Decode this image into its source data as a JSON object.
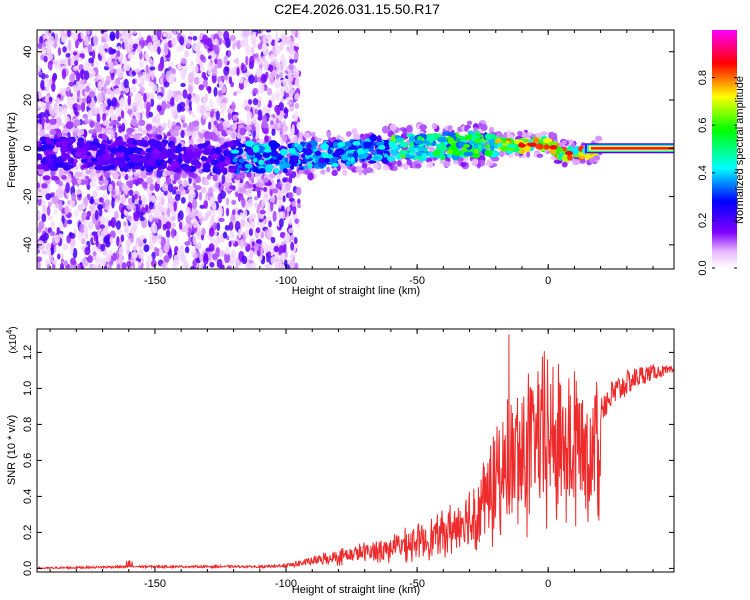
{
  "title": "C2E4.2026.031.15.50.R17",
  "colors": {
    "snr_line": "#ee2a2a",
    "background": "#ffffff",
    "axes": "#000000"
  },
  "chart_data": [
    {
      "type": "heatmap",
      "name": "spectrogram",
      "title": "C2E4.2026.031.15.50.R17",
      "xlabel": "Height of straight line (km)",
      "ylabel": "Frequency (Hz)",
      "xlim": [
        -195,
        48
      ],
      "ylim": [
        -50,
        49
      ],
      "xticks": [
        -150,
        -100,
        -50,
        0
      ],
      "yticks": [
        -40,
        -20,
        0,
        20,
        40
      ],
      "x_tick_labels": [
        "-150",
        "-100",
        "-50",
        "0"
      ],
      "y_tick_labels": [
        "-40",
        "-20",
        "0",
        "20",
        "40"
      ],
      "colorbar": {
        "label": "Normalized spectral amplitude",
        "range": [
          0,
          1
        ],
        "ticks": [
          0.0,
          0.2,
          0.4,
          0.6,
          0.8
        ],
        "tick_labels": [
          "0.0",
          "0.2",
          "0.4",
          "0.6",
          "0.8"
        ],
        "colormap": [
          "#ffffff",
          "#8000ff",
          "#0000ff",
          "#00ffff",
          "#00ff00",
          "#ffff00",
          "#ff0000",
          "#ff00ff"
        ]
      },
      "features": {
        "noise_region_x": [
          -195,
          -100
        ],
        "tone_center_hz": [
          [
            -195,
            -2
          ],
          [
            -100,
            -4
          ],
          [
            -60,
            0
          ],
          [
            -25,
            2
          ],
          [
            -12,
            1
          ],
          [
            0,
            2
          ],
          [
            5,
            -2
          ],
          [
            15,
            -2
          ],
          [
            20,
            0
          ],
          [
            48,
            0
          ]
        ],
        "strong_tone_start_km": 20
      }
    },
    {
      "type": "line",
      "name": "snr",
      "xlabel": "Height of straight line (km)",
      "ylabel": "SNR (10 * v/v)",
      "y_multiplier": "(x10",
      "y_multiplier_exp": "4",
      "y_multiplier_close": ")",
      "xlim": [
        -195,
        48
      ],
      "ylim": [
        -0.02,
        1.33
      ],
      "xticks": [
        -150,
        -100,
        -50,
        0
      ],
      "yticks": [
        0.0,
        0.2,
        0.4,
        0.6,
        0.8,
        1.0,
        1.2
      ],
      "x_tick_labels": [
        "-150",
        "-100",
        "-50",
        "0"
      ],
      "y_tick_labels": [
        "0.0",
        "0.2",
        "0.4",
        "0.6",
        "0.8",
        "1.0",
        "1.2"
      ],
      "series": [
        {
          "name": "SNR",
          "x": [
            -195,
            -160,
            -120,
            -110,
            -100,
            -90,
            -80,
            -70,
            -60,
            -50,
            -40,
            -30,
            -25,
            -20,
            -15,
            -10,
            -5,
            0,
            5,
            10,
            15,
            20,
            25,
            30,
            35,
            40,
            48
          ],
          "y": [
            0.0,
            0.01,
            0.01,
            0.01,
            0.02,
            0.05,
            0.08,
            0.11,
            0.14,
            0.18,
            0.24,
            0.34,
            0.45,
            0.58,
            0.7,
            0.8,
            0.88,
            0.9,
            0.88,
            0.86,
            0.84,
            0.9,
            0.97,
            1.03,
            1.07,
            1.09,
            1.1
          ]
        }
      ],
      "peak": {
        "x": -15,
        "y": 1.3
      }
    }
  ]
}
